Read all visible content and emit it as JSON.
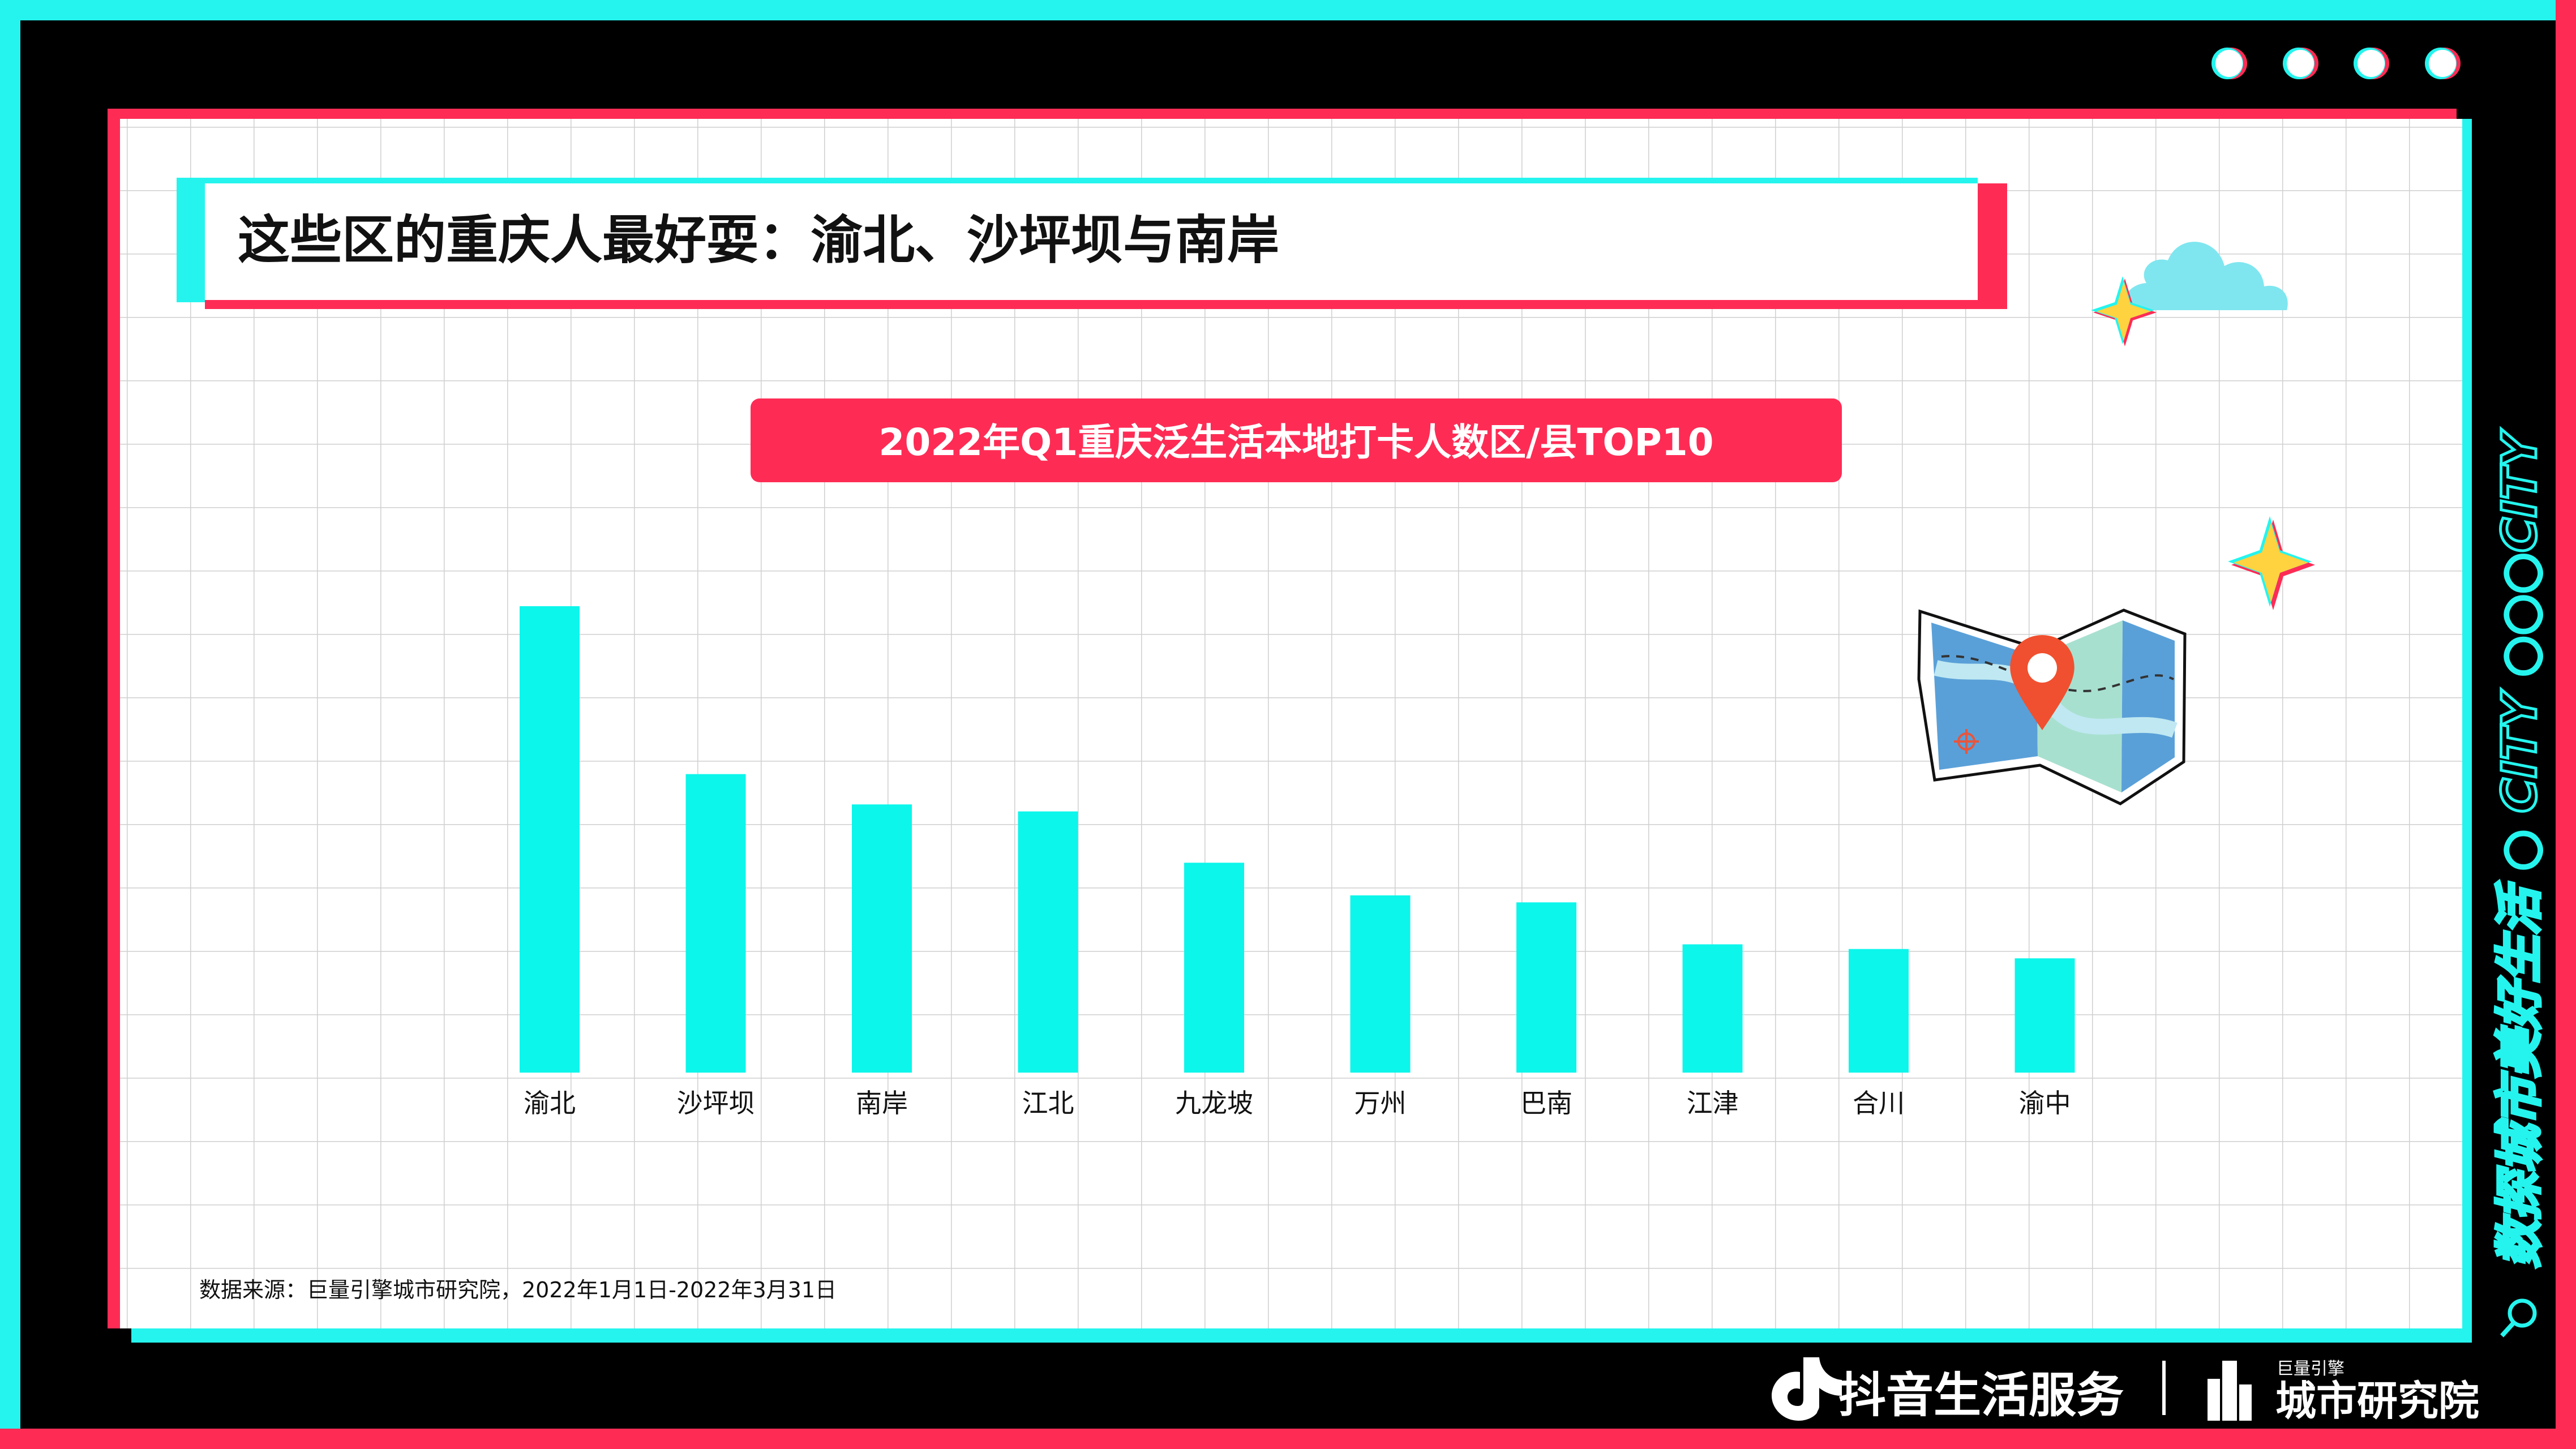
{
  "header": {
    "title": "这些区的重庆人最好耍：渝北、沙坪坝与南岸"
  },
  "chart_data": {
    "type": "bar",
    "title": "2022年Q1重庆泛生活本地打卡人数区/县TOP10",
    "xlabel": "",
    "ylabel": "",
    "categories": [
      "渝北",
      "沙坪坝",
      "南岸",
      "江北",
      "九龙坡",
      "万州",
      "巴南",
      "江津",
      "合川",
      "渝中"
    ],
    "values": [
      100,
      64,
      57.5,
      56,
      45,
      38,
      36.5,
      27.5,
      26.5,
      24.5
    ],
    "ylim": [
      0,
      100
    ],
    "grid": true,
    "legend": "none",
    "bar_color": "#0cf6eb"
  },
  "footer": {
    "source": "数据来源：巨量引擎城市研究院，2022年1月1日-2022年3月31日"
  },
  "side_text": "数探城市美好生活 ○ CITY ○○○CITY",
  "brand": {
    "douyin": "抖音生活服务",
    "institute_small": "巨量引擎",
    "institute": "城市研究院"
  },
  "colors": {
    "cyan": "#25f4ee",
    "pink": "#fe2c55",
    "black": "#000000",
    "grid": "#cfcfcf"
  },
  "icons": [
    "window-dot-icon",
    "cloud-icon",
    "sparkle-icon",
    "map-pin-icon",
    "search-icon",
    "douyin-logo-icon",
    "city-building-icon"
  ]
}
